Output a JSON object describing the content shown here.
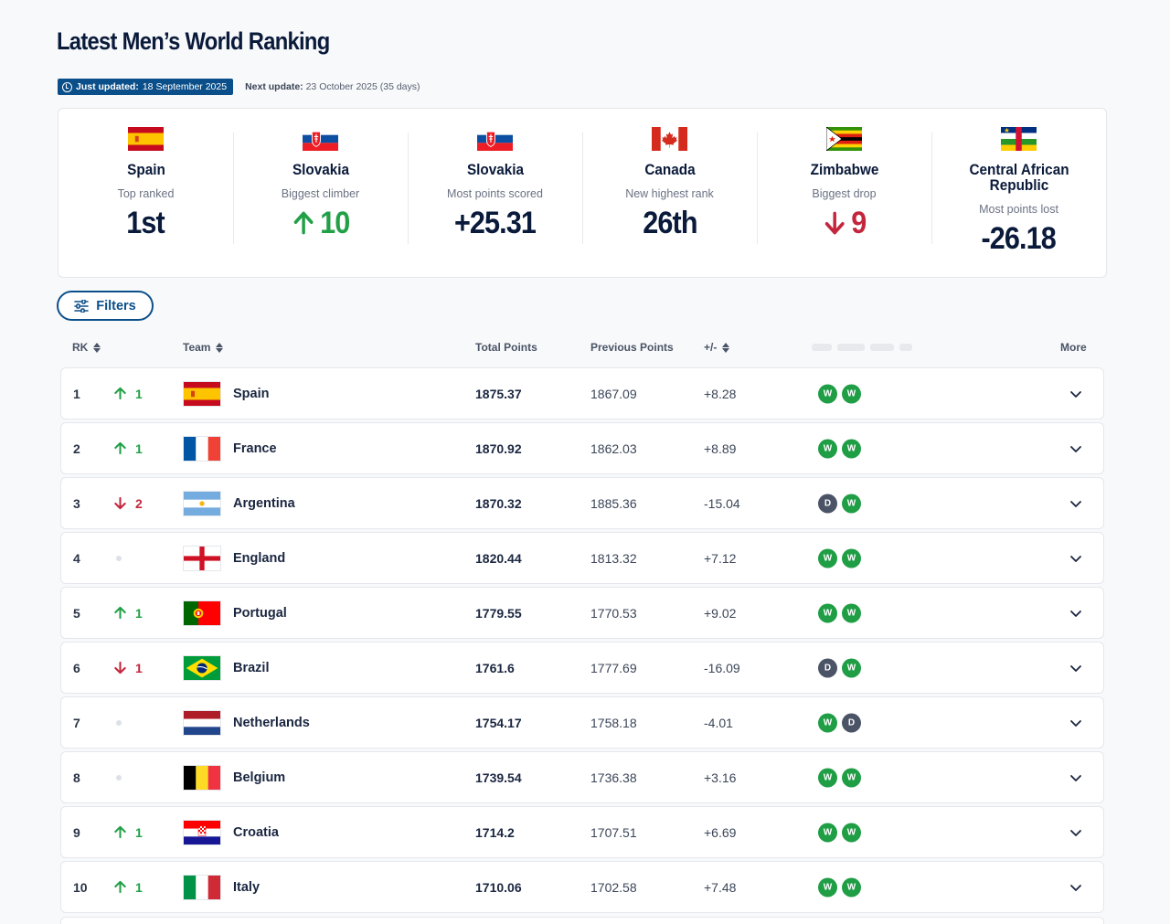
{
  "title": "Latest Men’s World Ranking",
  "update": {
    "just_label": "Just updated:",
    "just_date": "18 September 2025",
    "next_label": "Next update:",
    "next_date": "23 October 2025 (35 days)"
  },
  "stats": [
    {
      "team": "Spain",
      "label": "Top ranked",
      "value": "1st",
      "trend": "none",
      "flag": "spain"
    },
    {
      "team": "Slovakia",
      "label": "Biggest climber",
      "value": "10",
      "trend": "up",
      "flag": "slovakia"
    },
    {
      "team": "Slovakia",
      "label": "Most points scored",
      "value": "+25.31",
      "trend": "none",
      "flag": "slovakia"
    },
    {
      "team": "Canada",
      "label": "New highest rank",
      "value": "26th",
      "trend": "none",
      "flag": "canada"
    },
    {
      "team": "Zimbabwe",
      "label": "Biggest drop",
      "value": "9",
      "trend": "down",
      "flag": "zimbabwe"
    },
    {
      "team": "Central African Republic",
      "label": "Most points lost",
      "value": "-26.18",
      "trend": "none",
      "flag": "car"
    }
  ],
  "filters_label": "Filters",
  "columns": {
    "rank": "RK",
    "team": "Team",
    "total": "Total Points",
    "previous": "Previous Points",
    "diff": "+/-",
    "more": "More"
  },
  "rows": [
    {
      "rank": "1",
      "move": "up",
      "move_value": "1",
      "team": "Spain",
      "flag": "spain",
      "total": "1875.37",
      "previous": "1867.09",
      "diff": "+8.28",
      "form": [
        "W",
        "W"
      ]
    },
    {
      "rank": "2",
      "move": "up",
      "move_value": "1",
      "team": "France",
      "flag": "france",
      "total": "1870.92",
      "previous": "1862.03",
      "diff": "+8.89",
      "form": [
        "W",
        "W"
      ]
    },
    {
      "rank": "3",
      "move": "down",
      "move_value": "2",
      "team": "Argentina",
      "flag": "argentina",
      "total": "1870.32",
      "previous": "1885.36",
      "diff": "-15.04",
      "form": [
        "D",
        "W"
      ]
    },
    {
      "rank": "4",
      "move": "none",
      "move_value": "",
      "team": "England",
      "flag": "england",
      "total": "1820.44",
      "previous": "1813.32",
      "diff": "+7.12",
      "form": [
        "W",
        "W"
      ]
    },
    {
      "rank": "5",
      "move": "up",
      "move_value": "1",
      "team": "Portugal",
      "flag": "portugal",
      "total": "1779.55",
      "previous": "1770.53",
      "diff": "+9.02",
      "form": [
        "W",
        "W"
      ]
    },
    {
      "rank": "6",
      "move": "down",
      "move_value": "1",
      "team": "Brazil",
      "flag": "brazil",
      "total": "1761.6",
      "previous": "1777.69",
      "diff": "-16.09",
      "form": [
        "D",
        "W"
      ]
    },
    {
      "rank": "7",
      "move": "none",
      "move_value": "",
      "team": "Netherlands",
      "flag": "netherlands",
      "total": "1754.17",
      "previous": "1758.18",
      "diff": "-4.01",
      "form": [
        "W",
        "D"
      ]
    },
    {
      "rank": "8",
      "move": "none",
      "move_value": "",
      "team": "Belgium",
      "flag": "belgium",
      "total": "1739.54",
      "previous": "1736.38",
      "diff": "+3.16",
      "form": [
        "W",
        "W"
      ]
    },
    {
      "rank": "9",
      "move": "up",
      "move_value": "1",
      "team": "Croatia",
      "flag": "croatia",
      "total": "1714.2",
      "previous": "1707.51",
      "diff": "+6.69",
      "form": [
        "W",
        "W"
      ]
    },
    {
      "rank": "10",
      "move": "up",
      "move_value": "1",
      "team": "Italy",
      "flag": "italy",
      "total": "1710.06",
      "previous": "1702.58",
      "diff": "+7.48",
      "form": [
        "W",
        "W"
      ]
    }
  ],
  "colors": {
    "brand": "#0b4f8a",
    "up": "#22a047",
    "down": "#c3263d",
    "win": "#1f9e45",
    "draw": "#4b5366"
  }
}
